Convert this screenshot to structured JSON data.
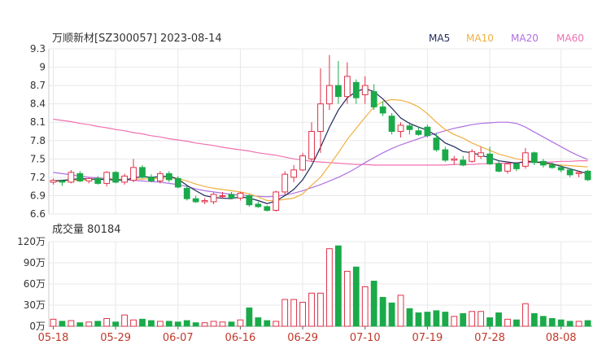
{
  "colors": {
    "up": "#e0324a",
    "down": "#1aaa4a",
    "grid": "#e8e8e8",
    "axis": "#666666",
    "ma5": "#1f2a5a",
    "ma10": "#f0b040",
    "ma20": "#b070e0",
    "ma60": "#f070b0"
  },
  "chart_data": [
    {
      "type": "candlestick",
      "title": "万顺新材[SZ300057] 2023-08-14",
      "ylim": [
        6.6,
        9.3
      ],
      "yticks": [
        "9.3",
        "9",
        "8.7",
        "8.4",
        "8.1",
        "7.8",
        "7.5",
        "7.2",
        "6.9",
        "6.6"
      ],
      "legend": [
        {
          "label": "MA5",
          "color": "#1f2a5a"
        },
        {
          "label": "MA10",
          "color": "#f0b040"
        },
        {
          "label": "MA20",
          "color": "#b070e0"
        },
        {
          "label": "MA60",
          "color": "#f070b0"
        }
      ],
      "legend_position": "top-right",
      "x_tick_labels": [
        {
          "label": "05-18",
          "index": 0
        },
        {
          "label": "05-29",
          "index": 7
        },
        {
          "label": "06-07",
          "index": 14
        },
        {
          "label": "06-16",
          "index": 21
        },
        {
          "label": "06-29",
          "index": 28
        },
        {
          "label": "07-10",
          "index": 35
        },
        {
          "label": "07-19",
          "index": 42
        },
        {
          "label": "07-28",
          "index": 49
        },
        {
          "label": "08-08",
          "index": 57
        }
      ],
      "ohlc": [
        [
          7.12,
          7.18,
          7.08,
          7.15
        ],
        [
          7.14,
          7.16,
          7.06,
          7.12
        ],
        [
          7.12,
          7.32,
          7.1,
          7.28
        ],
        [
          7.26,
          7.3,
          7.12,
          7.14
        ],
        [
          7.14,
          7.2,
          7.1,
          7.18
        ],
        [
          7.18,
          7.22,
          7.08,
          7.1
        ],
        [
          7.1,
          7.3,
          7.05,
          7.28
        ],
        [
          7.28,
          7.3,
          7.1,
          7.12
        ],
        [
          7.12,
          7.26,
          7.08,
          7.22
        ],
        [
          7.15,
          7.5,
          7.12,
          7.36
        ],
        [
          7.36,
          7.4,
          7.18,
          7.2
        ],
        [
          7.2,
          7.25,
          7.12,
          7.14
        ],
        [
          7.14,
          7.3,
          7.1,
          7.26
        ],
        [
          7.26,
          7.3,
          7.12,
          7.16
        ],
        [
          7.18,
          7.22,
          7.02,
          7.04
        ],
        [
          7.02,
          7.06,
          6.82,
          6.85
        ],
        [
          6.85,
          6.9,
          6.78,
          6.8
        ],
        [
          6.8,
          6.86,
          6.76,
          6.82
        ],
        [
          6.8,
          6.95,
          6.76,
          6.92
        ],
        [
          6.9,
          6.96,
          6.86,
          6.9
        ],
        [
          6.92,
          6.96,
          6.84,
          6.86
        ],
        [
          6.86,
          6.96,
          6.82,
          6.94
        ],
        [
          6.9,
          6.92,
          6.72,
          6.75
        ],
        [
          6.76,
          6.8,
          6.7,
          6.72
        ],
        [
          6.72,
          6.74,
          6.64,
          6.66
        ],
        [
          6.66,
          6.98,
          6.64,
          6.96
        ],
        [
          6.96,
          7.3,
          6.92,
          7.25
        ],
        [
          7.2,
          7.4,
          7.12,
          7.32
        ],
        [
          7.32,
          7.6,
          7.3,
          7.55
        ],
        [
          7.5,
          8.1,
          7.45,
          7.95
        ],
        [
          7.95,
          8.98,
          7.6,
          8.4
        ],
        [
          8.4,
          9.2,
          8.3,
          8.7
        ],
        [
          8.7,
          9.1,
          8.4,
          8.52
        ],
        [
          8.52,
          9.08,
          8.4,
          8.85
        ],
        [
          8.75,
          8.8,
          8.4,
          8.5
        ],
        [
          8.55,
          8.85,
          8.4,
          8.7
        ],
        [
          8.6,
          8.72,
          8.3,
          8.35
        ],
        [
          8.35,
          8.44,
          8.2,
          8.25
        ],
        [
          8.2,
          8.25,
          7.9,
          7.95
        ],
        [
          7.95,
          8.1,
          7.85,
          8.05
        ],
        [
          8.04,
          8.1,
          7.9,
          7.98
        ],
        [
          7.96,
          8.02,
          7.88,
          7.9
        ],
        [
          8.02,
          8.06,
          7.85,
          7.88
        ],
        [
          7.84,
          7.92,
          7.62,
          7.65
        ],
        [
          7.65,
          7.7,
          7.45,
          7.48
        ],
        [
          7.48,
          7.55,
          7.4,
          7.5
        ],
        [
          7.48,
          7.55,
          7.38,
          7.4
        ],
        [
          7.46,
          7.66,
          7.44,
          7.62
        ],
        [
          7.54,
          7.7,
          7.5,
          7.6
        ],
        [
          7.58,
          7.7,
          7.4,
          7.42
        ],
        [
          7.42,
          7.46,
          7.28,
          7.3
        ],
        [
          7.3,
          7.46,
          7.26,
          7.42
        ],
        [
          7.42,
          7.44,
          7.3,
          7.34
        ],
        [
          7.38,
          7.68,
          7.34,
          7.6
        ],
        [
          7.6,
          7.62,
          7.4,
          7.44
        ],
        [
          7.46,
          7.5,
          7.36,
          7.4
        ],
        [
          7.4,
          7.44,
          7.34,
          7.36
        ],
        [
          7.36,
          7.4,
          7.28,
          7.32
        ],
        [
          7.32,
          7.34,
          7.2,
          7.24
        ],
        [
          7.26,
          7.3,
          7.2,
          7.28
        ],
        [
          7.3,
          7.32,
          7.14,
          7.16
        ]
      ],
      "ma5": [
        7.14,
        7.15,
        7.16,
        7.18,
        7.17,
        7.17,
        7.16,
        7.16,
        7.15,
        7.19,
        7.21,
        7.2,
        7.21,
        7.22,
        7.17,
        7.07,
        6.98,
        6.9,
        6.87,
        6.86,
        6.85,
        6.88,
        6.86,
        6.82,
        6.77,
        6.81,
        6.9,
        7.0,
        7.16,
        7.39,
        7.69,
        8.02,
        8.3,
        8.5,
        8.6,
        8.65,
        8.6,
        8.48,
        8.33,
        8.17,
        8.08,
        8.02,
        7.97,
        7.88,
        7.76,
        7.7,
        7.62,
        7.6,
        7.56,
        7.52,
        7.47,
        7.45,
        7.43,
        7.46,
        7.45,
        7.44,
        7.42,
        7.38,
        7.34,
        7.3,
        7.26
      ],
      "ma10": [
        7.13,
        7.14,
        7.15,
        7.15,
        7.16,
        7.17,
        7.17,
        7.17,
        7.17,
        7.17,
        7.17,
        7.18,
        7.18,
        7.19,
        7.18,
        7.14,
        7.09,
        7.05,
        7.02,
        7.0,
        6.98,
        6.96,
        6.93,
        6.88,
        6.82,
        6.82,
        6.84,
        6.86,
        6.93,
        7.07,
        7.2,
        7.4,
        7.6,
        7.82,
        8.0,
        8.18,
        8.35,
        8.44,
        8.47,
        8.46,
        8.42,
        8.35,
        8.24,
        8.1,
        7.98,
        7.9,
        7.84,
        7.76,
        7.7,
        7.64,
        7.58,
        7.54,
        7.5,
        7.48,
        7.45,
        7.43,
        7.41,
        7.4,
        7.39,
        7.38,
        7.37
      ],
      "ma20": [
        7.28,
        7.26,
        7.24,
        7.22,
        7.2,
        7.19,
        7.18,
        7.17,
        7.16,
        7.15,
        7.14,
        7.13,
        7.12,
        7.1,
        7.08,
        7.05,
        7.01,
        6.98,
        6.96,
        6.94,
        6.92,
        6.91,
        6.9,
        6.89,
        6.88,
        6.89,
        6.91,
        6.94,
        6.98,
        7.03,
        7.08,
        7.14,
        7.2,
        7.27,
        7.35,
        7.44,
        7.52,
        7.6,
        7.67,
        7.73,
        7.78,
        7.83,
        7.88,
        7.92,
        7.96,
        8.0,
        8.03,
        8.06,
        8.08,
        8.09,
        8.1,
        8.1,
        8.08,
        8.02,
        7.94,
        7.86,
        7.78,
        7.7,
        7.62,
        7.55,
        7.49
      ],
      "ma60": [
        8.15,
        8.13,
        8.11,
        8.08,
        8.06,
        8.03,
        8.01,
        7.98,
        7.96,
        7.93,
        7.91,
        7.88,
        7.86,
        7.83,
        7.81,
        7.79,
        7.76,
        7.74,
        7.72,
        7.69,
        7.67,
        7.65,
        7.63,
        7.6,
        7.58,
        7.56,
        7.53,
        7.5,
        7.48,
        7.46,
        7.45,
        7.44,
        7.43,
        7.42,
        7.41,
        7.41,
        7.4,
        7.4,
        7.4,
        7.4,
        7.4,
        7.4,
        7.4,
        7.4,
        7.4,
        7.41,
        7.41,
        7.41,
        7.42,
        7.42,
        7.43,
        7.43,
        7.44,
        7.44,
        7.45,
        7.45,
        7.45,
        7.46,
        7.46,
        7.47,
        7.47
      ]
    },
    {
      "type": "bar",
      "title": "成交量 80184",
      "ylim": [
        0,
        120
      ],
      "yticks": [
        "120万",
        "90万",
        "60万",
        "30万",
        "0万"
      ],
      "unit": "万",
      "values": [
        10,
        7,
        8,
        5,
        6,
        7,
        11,
        6,
        16,
        9,
        10,
        8,
        7,
        7,
        6,
        8,
        5,
        5,
        7,
        6,
        6,
        9,
        26,
        12,
        8,
        7,
        38,
        38,
        34,
        47,
        47,
        110,
        114,
        78,
        84,
        56,
        64,
        41,
        33,
        44,
        25,
        19,
        20,
        22,
        20,
        14,
        18,
        21,
        21,
        12,
        19,
        10,
        9,
        32,
        18,
        14,
        11,
        9,
        7,
        7,
        8
      ]
    }
  ]
}
